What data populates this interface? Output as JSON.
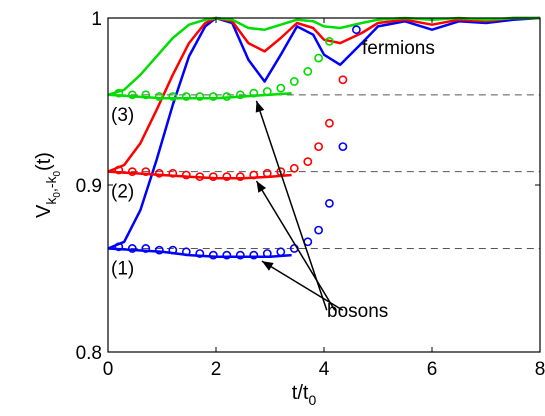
{
  "chart_data": {
    "type": "line",
    "title": "",
    "xlabel": "t/t",
    "xlabel_sub": "0",
    "ylabel_main": "V",
    "ylabel_sub": "k",
    "ylabel_sub2": "0",
    "ylabel_mid": ",-k",
    "ylabel_sub3": "0",
    "ylabel_tail": "(t)",
    "xlim": [
      0,
      8
    ],
    "ylim": [
      0.8,
      1.0
    ],
    "xticks": [
      "0",
      "2",
      "4",
      "6",
      "8"
    ],
    "yticks": [
      "0.8",
      "0.9",
      "1"
    ],
    "reference_lines": [
      0.862,
      0.908,
      0.954
    ],
    "series": [
      {
        "label": "(1)",
        "color": "#0000ff",
        "fermion_curve": {
          "x": [
            0,
            0.3,
            0.6,
            0.9,
            1.2,
            1.5,
            1.8,
            2.0,
            2.3,
            2.6,
            2.9,
            3.2,
            3.5,
            3.8,
            4.0,
            4.3,
            4.7,
            5.0,
            5.5,
            6.0,
            6.5,
            7.0,
            7.5,
            8.0
          ],
          "y": [
            0.862,
            0.866,
            0.885,
            0.915,
            0.948,
            0.977,
            0.995,
            1.0,
            0.997,
            0.975,
            0.962,
            0.978,
            0.995,
            0.99,
            0.978,
            0.972,
            0.985,
            0.995,
            0.998,
            0.993,
            0.998,
            0.997,
            0.999,
            1.0
          ]
        },
        "boson_curve": {
          "x": [
            0,
            0.5,
            1.0,
            1.5,
            2.0,
            2.5,
            3.0,
            3.4
          ],
          "y": [
            0.862,
            0.861,
            0.86,
            0.858,
            0.857,
            0.857,
            0.857,
            0.858
          ]
        },
        "boson_points": {
          "x": [
            0.2,
            0.45,
            0.7,
            0.95,
            1.2,
            1.45,
            1.7,
            1.95,
            2.2,
            2.45,
            2.7,
            2.95,
            3.2,
            3.45,
            3.7,
            3.9,
            4.1,
            4.35,
            4.6
          ],
          "y": [
            0.863,
            0.862,
            0.862,
            0.861,
            0.861,
            0.86,
            0.859,
            0.858,
            0.858,
            0.858,
            0.858,
            0.859,
            0.86,
            0.862,
            0.866,
            0.873,
            0.889,
            0.923,
            0.993
          ]
        }
      },
      {
        "label": "(2)",
        "color": "#ff0000",
        "fermion_curve": {
          "x": [
            0,
            0.3,
            0.6,
            0.9,
            1.2,
            1.5,
            1.8,
            2.0,
            2.3,
            2.6,
            2.9,
            3.2,
            3.5,
            3.8,
            4.0,
            4.3,
            4.7,
            5.0,
            5.5,
            6.0,
            6.5,
            7.0,
            7.5,
            8.0
          ],
          "y": [
            0.908,
            0.912,
            0.925,
            0.945,
            0.966,
            0.985,
            0.997,
            1.0,
            0.998,
            0.985,
            0.98,
            0.988,
            0.997,
            0.994,
            0.987,
            0.985,
            0.991,
            0.997,
            0.999,
            0.996,
            0.999,
            0.998,
            1.0,
            1.0
          ]
        },
        "boson_curve": {
          "x": [
            0,
            0.5,
            1.0,
            1.5,
            2.0,
            2.5,
            3.0,
            3.4
          ],
          "y": [
            0.908,
            0.907,
            0.906,
            0.905,
            0.904,
            0.904,
            0.905,
            0.906
          ]
        },
        "boson_points": {
          "x": [
            0.2,
            0.45,
            0.7,
            0.95,
            1.2,
            1.45,
            1.7,
            1.95,
            2.2,
            2.45,
            2.7,
            2.95,
            3.2,
            3.45,
            3.7,
            3.9,
            4.1,
            4.35
          ],
          "y": [
            0.909,
            0.908,
            0.908,
            0.907,
            0.907,
            0.906,
            0.905,
            0.905,
            0.905,
            0.905,
            0.906,
            0.907,
            0.908,
            0.91,
            0.914,
            0.923,
            0.937,
            0.963
          ]
        }
      },
      {
        "label": "(3)",
        "color": "#00dd00",
        "fermion_curve": {
          "x": [
            0,
            0.3,
            0.6,
            0.9,
            1.2,
            1.5,
            1.8,
            2.0,
            2.3,
            2.6,
            2.9,
            3.2,
            3.5,
            3.8,
            4.0,
            4.3,
            4.7,
            5.0,
            5.5,
            6.0,
            6.5,
            7.0,
            7.5,
            8.0
          ],
          "y": [
            0.954,
            0.957,
            0.966,
            0.977,
            0.988,
            0.996,
            0.999,
            1.0,
            0.999,
            0.994,
            0.993,
            0.996,
            0.999,
            0.998,
            0.995,
            0.994,
            0.997,
            0.999,
            1.0,
            0.999,
            1.0,
            0.999,
            1.0,
            1.0
          ]
        },
        "boson_curve": {
          "x": [
            0,
            0.5,
            1.0,
            1.5,
            2.0,
            2.5,
            3.0,
            3.4
          ],
          "y": [
            0.954,
            0.953,
            0.952,
            0.952,
            0.952,
            0.953,
            0.954,
            0.955
          ]
        },
        "boson_points": {
          "x": [
            0.2,
            0.45,
            0.7,
            0.95,
            1.2,
            1.45,
            1.7,
            1.95,
            2.2,
            2.45,
            2.7,
            2.95,
            3.2,
            3.45,
            3.7,
            3.9,
            4.1
          ],
          "y": [
            0.955,
            0.954,
            0.954,
            0.953,
            0.953,
            0.953,
            0.953,
            0.953,
            0.953,
            0.954,
            0.955,
            0.956,
            0.958,
            0.962,
            0.968,
            0.976,
            0.986
          ]
        }
      }
    ],
    "annotations": {
      "fermions_label": "fermions",
      "bosons_label": "bosons",
      "arrow_targets": [
        {
          "x": 2.75,
          "y": 0.954
        },
        {
          "x": 2.75,
          "y": 0.906
        },
        {
          "x": 2.85,
          "y": 0.858
        }
      ],
      "arrow_origin": {
        "x": 4.2,
        "y": 0.825
      }
    }
  }
}
